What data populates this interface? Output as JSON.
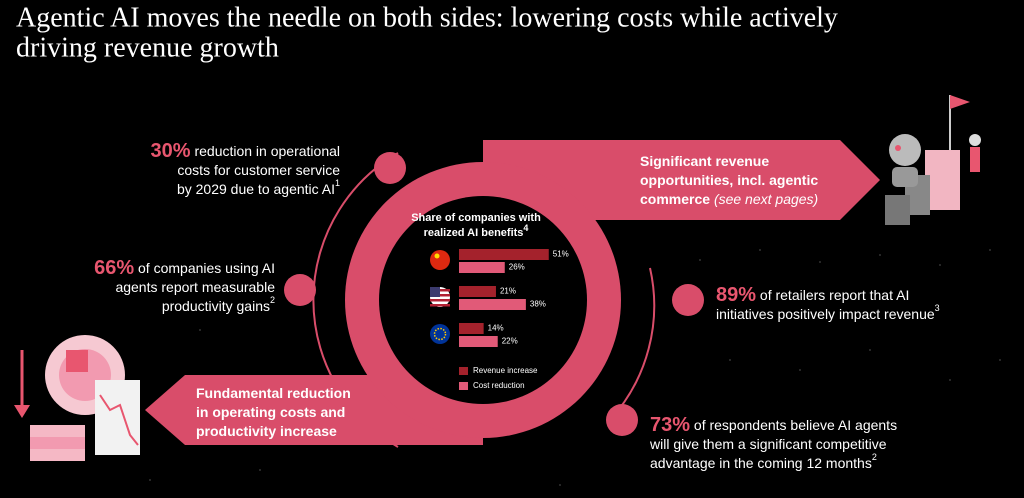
{
  "title_lines": [
    "Agentic AI moves the needle on both sides: lowering costs while actively",
    "driving revenue growth"
  ],
  "stats": [
    {
      "highlight": "30%",
      "lines": [
        "reduction in operational",
        "costs for customer service",
        "by 2029 due to agentic AI"
      ],
      "footnote": "1"
    },
    {
      "highlight": "66%",
      "lines": [
        "of companies using AI",
        "agents report measurable",
        "productivity gains"
      ],
      "footnote": "2"
    },
    {
      "highlight": "89%",
      "lines": [
        "of retailers report that AI",
        "initiatives positively impact revenue"
      ],
      "footnote": "3"
    },
    {
      "highlight": "73%",
      "lines": [
        "of respondents believe AI agents",
        "will give them a significant competitive",
        "advantage in the coming 12 months"
      ],
      "footnote": "2"
    }
  ],
  "arrows": [
    {
      "lines": [
        "Significant revenue",
        "opportunities, incl. agentic",
        "commerce"
      ],
      "note": "(see next pages)"
    },
    {
      "lines": [
        "Fundamental reduction",
        "in operating costs and",
        "productivity increase"
      ]
    }
  ],
  "chart_data": {
    "type": "bar",
    "orientation": "horizontal",
    "title": "Share of companies with realized AI benefits",
    "title_footnote": "4",
    "categories": [
      null,
      null,
      null
    ],
    "series": [
      {
        "name": "Revenue increase",
        "color": "#a4222c",
        "values": [
          51,
          21,
          14
        ],
        "value_labels": [
          "51%",
          "21%",
          "14%"
        ]
      },
      {
        "name": "Cost reduction",
        "color": "#e15a78",
        "values": [
          26,
          38,
          22
        ],
        "value_labels": [
          "26%",
          "38%",
          "22%"
        ]
      }
    ]
  }
}
